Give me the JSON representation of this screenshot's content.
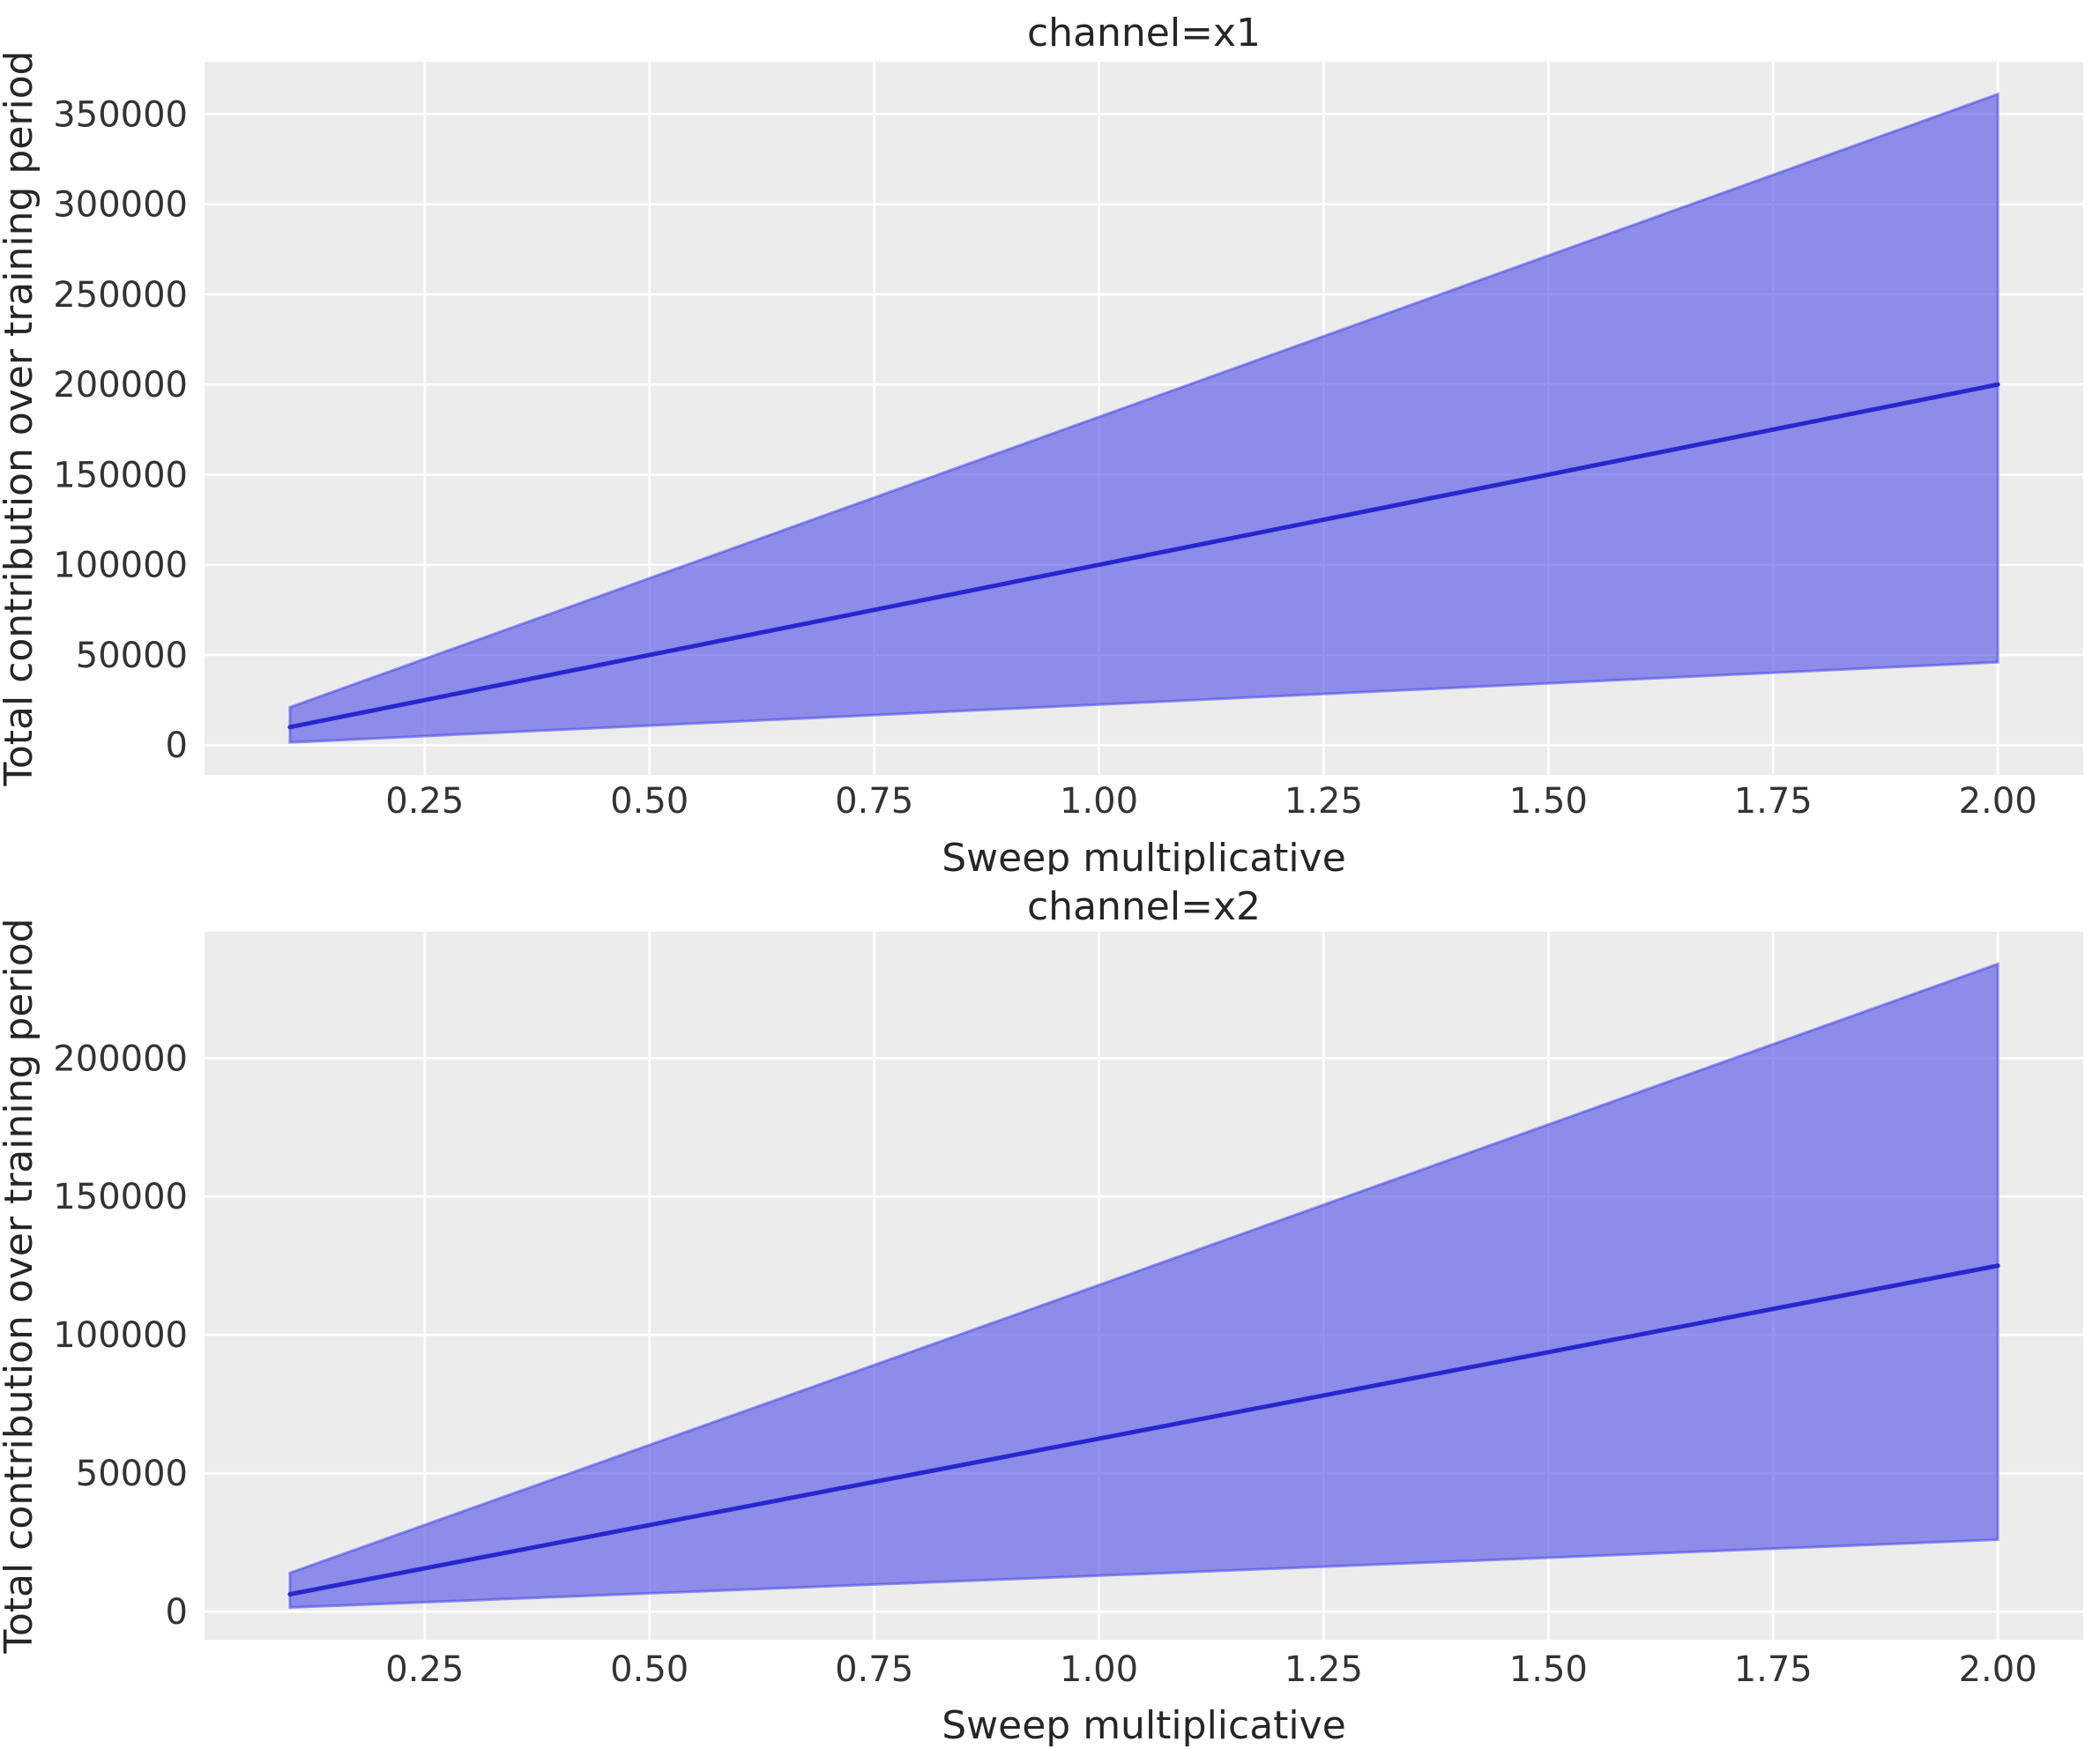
{
  "figure": {
    "background": "#ffffff",
    "axes_background": "#ececec",
    "grid_color": "#ffffff",
    "band_fill": "#5050e6",
    "band_fill_opacity": 0.62,
    "band_edge": "#4646e8",
    "band_edge_opacity": 0.55,
    "line_color": "#2727cd",
    "text_color": "#333333"
  },
  "chart_data": [
    {
      "type": "line",
      "name": "channel-x1",
      "title": "channel=x1",
      "xlabel": "Sweep multiplicative",
      "ylabel": "Total contribution over training period",
      "x": [
        0.1,
        1.0,
        2.0
      ],
      "series": [
        {
          "name": "mean",
          "values": [
            10000,
            100000,
            200000
          ]
        },
        {
          "name": "ci_lower",
          "values": [
            1500,
            22500,
            46000
          ]
        },
        {
          "name": "ci_upper",
          "values": [
            21000,
            182000,
            361000
          ]
        }
      ],
      "band": "ci_lower/ci_upper shaded confidence interval around mean",
      "x_ticks": [
        0.25,
        0.5,
        0.75,
        1.0,
        1.25,
        1.5,
        1.75,
        2.0
      ],
      "y_ticks": [
        0,
        50000,
        100000,
        150000,
        200000,
        250000,
        300000,
        350000
      ],
      "xlim": [
        0.005,
        2.095
      ],
      "ylim": [
        -16500,
        379000
      ],
      "grid": true,
      "legend": "none"
    },
    {
      "type": "line",
      "name": "channel-x2",
      "title": "channel=x2",
      "xlabel": "Sweep multiplicative",
      "ylabel": "Total contribution over training period",
      "x": [
        0.1,
        1.0,
        2.0
      ],
      "series": [
        {
          "name": "mean",
          "values": [
            6300,
            62500,
            125000
          ]
        },
        {
          "name": "ci_lower",
          "values": [
            1500,
            13000,
            26000
          ]
        },
        {
          "name": "ci_upper",
          "values": [
            14000,
            118000,
            234000
          ]
        }
      ],
      "band": "ci_lower/ci_upper shaded confidence interval around mean",
      "x_ticks": [
        0.25,
        0.5,
        0.75,
        1.0,
        1.25,
        1.5,
        1.75,
        2.0
      ],
      "y_ticks": [
        0,
        50000,
        100000,
        150000,
        200000
      ],
      "xlim": [
        0.005,
        2.095
      ],
      "ylim": [
        -10125,
        245625
      ],
      "grid": true,
      "legend": "none"
    }
  ]
}
